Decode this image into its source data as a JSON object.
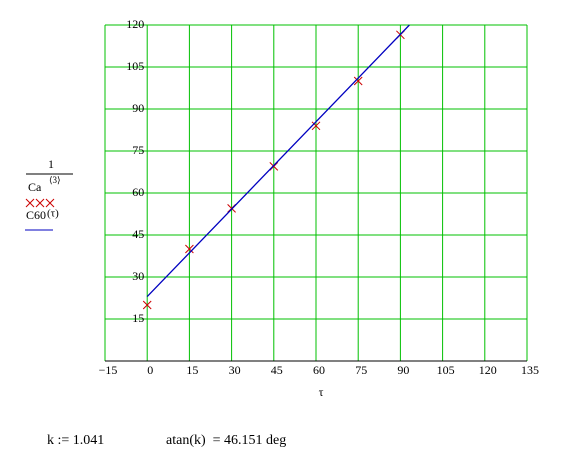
{
  "chart_data": {
    "type": "combo",
    "xlim": [
      -15,
      135
    ],
    "ylim": [
      0,
      120
    ],
    "xticks": [
      {
        "value": -15,
        "label": "−15"
      },
      0,
      15,
      30,
      45,
      60,
      75,
      90,
      105,
      120,
      135
    ],
    "yticks": [
      15,
      30,
      45,
      60,
      75,
      90,
      105,
      120
    ],
    "grid": true,
    "grid_color": "#00c000",
    "x_label": "τ",
    "y_label": {
      "numerator": "1",
      "denominator": "Ca",
      "superscript": "⟨3⟩",
      "second": "C60",
      "second_arg": "(τ)"
    },
    "series": [
      {
        "type": "scatter",
        "color": "#cc0000",
        "x": [
          0,
          15,
          30,
          45,
          60,
          75,
          90
        ],
        "values": [
          20,
          40,
          54.5,
          69.5,
          84,
          100,
          116.5
        ]
      },
      {
        "type": "line",
        "color": "#0000c0",
        "x": [
          0,
          93.2
        ],
        "values": [
          23,
          120
        ]
      }
    ]
  },
  "annotations": [
    "k := 1.041",
    "atan(k)  = 46.151 deg"
  ]
}
